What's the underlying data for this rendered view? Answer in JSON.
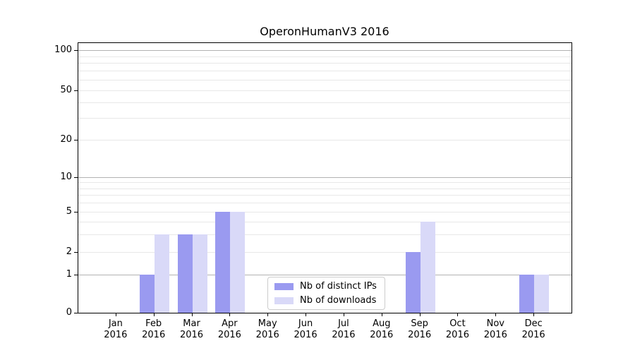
{
  "chart_data": {
    "type": "bar",
    "title": "OperonHumanV3 2016",
    "categories": [
      [
        "Jan",
        "2016"
      ],
      [
        "Feb",
        "2016"
      ],
      [
        "Mar",
        "2016"
      ],
      [
        "Apr",
        "2016"
      ],
      [
        "May",
        "2016"
      ],
      [
        "Jun",
        "2016"
      ],
      [
        "Jul",
        "2016"
      ],
      [
        "Aug",
        "2016"
      ],
      [
        "Sep",
        "2016"
      ],
      [
        "Oct",
        "2016"
      ],
      [
        "Nov",
        "2016"
      ],
      [
        "Dec",
        "2016"
      ]
    ],
    "series": [
      {
        "name": "Nb of distinct IPs",
        "color": "#9a9af0",
        "values": [
          0,
          1,
          3,
          5,
          0,
          0,
          0,
          0,
          2,
          0,
          0,
          1
        ]
      },
      {
        "name": "Nb of downloads",
        "color": "#d9d9f8",
        "values": [
          0,
          3,
          3,
          5,
          0,
          0,
          0,
          0,
          4,
          0,
          0,
          1
        ]
      }
    ],
    "xlabel": "",
    "ylabel": "",
    "yticks": [
      0,
      1,
      2,
      5,
      10,
      20,
      50,
      100
    ],
    "yscale": "log above 1, linear 0-1",
    "ylim": [
      0,
      115
    ],
    "grid": true,
    "minor_gridline_values": [
      3,
      4,
      6,
      7,
      8,
      9,
      30,
      40,
      60,
      70,
      80,
      90
    ],
    "major_gridline_values": [
      1,
      10,
      100
    ],
    "legend_position": "lower-center",
    "colors": {
      "major_gridline": "#b2b2b2",
      "minor_gridline": "#e8e8e8",
      "spine": "#000000",
      "text": "#000000",
      "background": "#ffffff",
      "legend_border": "#cccccc"
    }
  }
}
